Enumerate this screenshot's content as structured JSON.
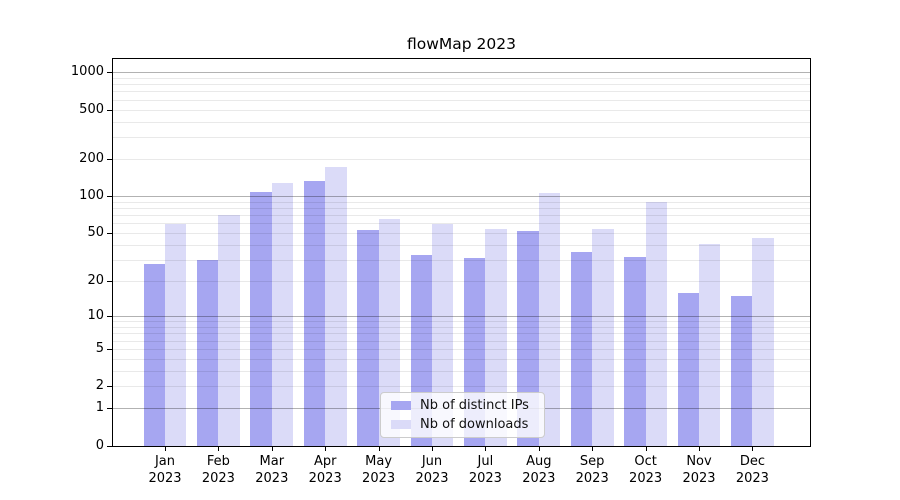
{
  "chart_data": {
    "type": "bar",
    "title": "flowMap 2023",
    "categories": [
      "Jan 2023",
      "Feb 2023",
      "Mar 2023",
      "Apr 2023",
      "May 2023",
      "Jun 2023",
      "Jul 2023",
      "Aug 2023",
      "Sep 2023",
      "Oct 2023",
      "Nov 2023",
      "Dec 2023"
    ],
    "series": [
      {
        "name": "Nb of distinct IPs",
        "color": "#a6a6f1",
        "values": [
          28,
          30,
          108,
          132,
          53,
          33,
          31,
          52,
          35,
          32,
          16,
          15
        ]
      },
      {
        "name": "Nb of downloads",
        "color": "#dbdbf8",
        "values": [
          59,
          71,
          127,
          172,
          65,
          59,
          54,
          106,
          54,
          90,
          41,
          46
        ]
      }
    ],
    "xlabel": "",
    "ylabel": "",
    "yscale": "pseudo-log (log10 of 1+value)",
    "yticks": [
      0,
      1,
      2,
      5,
      10,
      20,
      50,
      100,
      200,
      500,
      1000
    ],
    "ylim": [
      0,
      1300
    ],
    "grid": "horizontal major+minor log gridlines",
    "legend": {
      "position": "inside lower-center of plot",
      "entries": [
        "Nb of distinct IPs",
        "Nb of downloads"
      ]
    },
    "colors": {
      "major_grid": "#b3b3b3",
      "minor_grid": "#e9e9e9",
      "spine": "#000000",
      "background": "#ffffff"
    }
  }
}
